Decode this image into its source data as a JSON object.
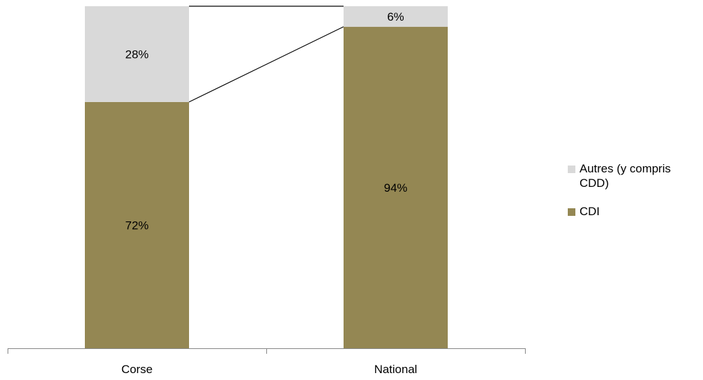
{
  "chart_data": {
    "type": "bar",
    "stacked": true,
    "categories": [
      "Corse",
      "National"
    ],
    "series": [
      {
        "name": "CDI",
        "values": [
          72,
          94
        ],
        "labels": [
          "72%",
          "94%"
        ],
        "color": "#948753"
      },
      {
        "name": "Autres (y compris CDD)",
        "values": [
          28,
          6
        ],
        "labels": [
          "28%",
          "6%"
        ],
        "color": "#d9d9d9"
      }
    ],
    "ylim": [
      0,
      100
    ],
    "legend_position": "right",
    "series_lines": true,
    "grid": false
  },
  "legend": {
    "items": [
      {
        "label_line1": "Autres (y compris",
        "label_line2": "CDD)",
        "color": "#d9d9d9"
      },
      {
        "label_line1": "CDI",
        "color": "#948753"
      }
    ]
  }
}
